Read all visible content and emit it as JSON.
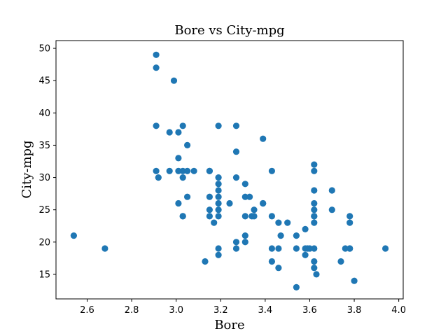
{
  "chart_data": {
    "type": "scatter",
    "title": "Bore vs City-mpg",
    "xlabel": "Bore",
    "ylabel": "City-mpg",
    "xlim": [
      2.46,
      4.02
    ],
    "ylim": [
      11.2,
      51.2
    ],
    "x_ticks": [
      "2.6",
      "2.8",
      "3.0",
      "3.2",
      "3.4",
      "3.6",
      "3.8",
      "4.0"
    ],
    "y_ticks": [
      "15",
      "20",
      "25",
      "30",
      "35",
      "40",
      "45",
      "50"
    ],
    "marker_color": "#1f77b4",
    "grid": false,
    "series": [
      {
        "x": [
          2.54,
          2.68,
          2.91,
          2.91,
          2.91,
          2.91,
          2.92,
          2.99,
          2.97,
          2.97,
          3.01,
          3.01,
          3.03,
          3.03,
          3.03,
          3.05,
          3.05,
          3.03,
          3.03,
          3.05,
          3.08,
          3.01,
          3.01,
          3.13,
          3.15,
          3.15,
          3.15,
          3.15,
          3.15,
          3.17,
          3.19,
          3.19,
          3.19,
          3.19,
          3.19,
          3.19,
          3.19,
          3.19,
          3.19,
          3.19,
          3.24,
          3.27,
          3.27,
          3.27,
          3.27,
          3.27,
          3.31,
          3.31,
          3.31,
          3.31,
          3.31,
          3.33,
          3.34,
          3.35,
          3.35,
          3.39,
          3.39,
          3.39,
          3.43,
          3.43,
          3.43,
          3.43,
          3.46,
          3.46,
          3.46,
          3.47,
          3.5,
          3.54,
          3.54,
          3.54,
          3.58,
          3.58,
          3.58,
          3.59,
          3.6,
          3.62,
          3.62,
          3.62,
          3.62,
          3.62,
          3.62,
          3.62,
          3.62,
          3.62,
          3.62,
          3.62,
          3.63,
          3.7,
          3.7,
          3.74,
          3.76,
          3.78,
          3.78,
          3.78,
          3.78,
          3.8,
          3.94
        ],
        "y": [
          21,
          19,
          49,
          47,
          38,
          31,
          30,
          45,
          37,
          31,
          37,
          33,
          38,
          31,
          30,
          35,
          31,
          24,
          24,
          27,
          31,
          26,
          31,
          17,
          31,
          27,
          25,
          24,
          31,
          23,
          38,
          30,
          29,
          28,
          27,
          26,
          25,
          24,
          19,
          18,
          26,
          38,
          34,
          30,
          20,
          19,
          29,
          27,
          24,
          21,
          20,
          27,
          24,
          25,
          24,
          36,
          26,
          26,
          31,
          24,
          19,
          17,
          23,
          19,
          16,
          21,
          23,
          21,
          19,
          13,
          22,
          19,
          18,
          19,
          19,
          32,
          31,
          28,
          26,
          25,
          24,
          24,
          23,
          19,
          17,
          16,
          15,
          28,
          25,
          17,
          19,
          24,
          23,
          19,
          19,
          14,
          19
        ]
      }
    ]
  }
}
